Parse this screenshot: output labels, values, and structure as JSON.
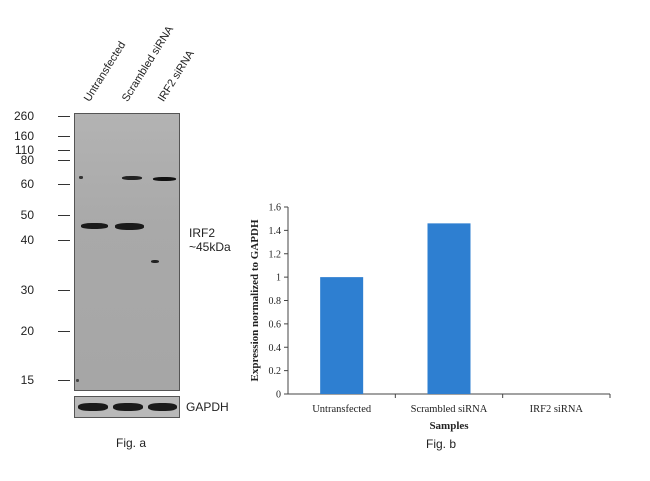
{
  "figure_a": {
    "lane_labels": [
      "Untransfected",
      "Scrambled siRNA",
      "IRF2 siRNA"
    ],
    "mw_markers": [
      "260",
      "160",
      "110",
      "80",
      "60",
      "50",
      "40",
      "30",
      "20",
      "15"
    ],
    "target_label_line1": "IRF2",
    "target_label_line2": "~45kDa",
    "loading_control_label": "GAPDH",
    "caption": "Fig. a"
  },
  "figure_b": {
    "caption": "Fig. b"
  },
  "chart_data": {
    "type": "bar",
    "categories": [
      "Untransfected",
      "Scrambled siRNA",
      "IRF2 siRNA"
    ],
    "values": [
      1.0,
      1.46,
      0.0
    ],
    "y_ticks": [
      "0",
      "0.2",
      "0.4",
      "0.6",
      "0.8",
      "1",
      "1.2",
      "1.4",
      "1.6"
    ],
    "xlabel": "Samples",
    "ylabel": "Expression normalized to GAPDH",
    "ylim": [
      0,
      1.6
    ],
    "bar_color": "#2e7fd1",
    "grid": false,
    "legend": "none"
  }
}
